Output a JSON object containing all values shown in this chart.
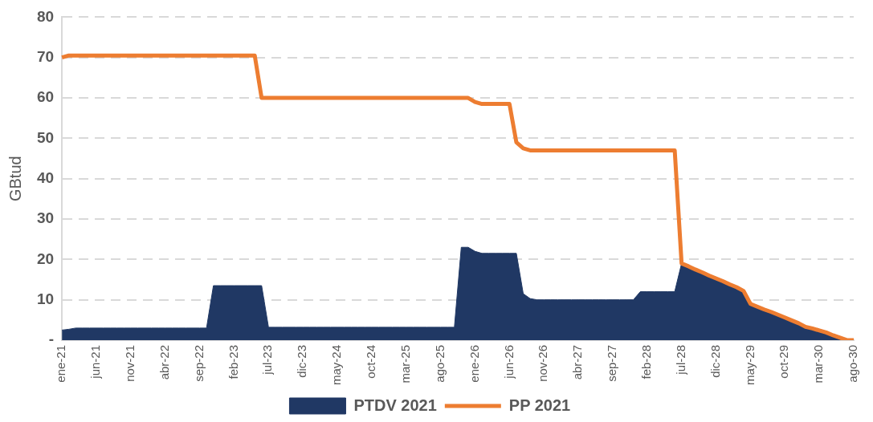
{
  "chart_data": {
    "type": "area",
    "ylabel": "GBtud",
    "categories": [
      "ene-21",
      null,
      null,
      null,
      null,
      "jun-21",
      null,
      null,
      null,
      null,
      "nov-21",
      null,
      null,
      null,
      null,
      "abr-22",
      null,
      null,
      null,
      null,
      "sep-22",
      null,
      null,
      null,
      null,
      "feb-23",
      null,
      null,
      null,
      null,
      "jul-23",
      null,
      null,
      null,
      null,
      "dic-23",
      null,
      null,
      null,
      null,
      "may-24",
      null,
      null,
      null,
      null,
      "oct-24",
      null,
      null,
      null,
      null,
      "mar-25",
      null,
      null,
      null,
      null,
      "ago-25",
      null,
      null,
      null,
      null,
      "ene-26",
      null,
      null,
      null,
      null,
      "jun-26",
      null,
      null,
      null,
      null,
      "nov-26",
      null,
      null,
      null,
      null,
      "abr-27",
      null,
      null,
      null,
      null,
      "sep-27",
      null,
      null,
      null,
      null,
      "feb-28",
      null,
      null,
      null,
      null,
      "jul-28",
      null,
      null,
      null,
      null,
      "dic-28",
      null,
      null,
      null,
      null,
      "may-29",
      null,
      null,
      null,
      null,
      "oct-29",
      null,
      null,
      null,
      null,
      "mar-30",
      null,
      null,
      null,
      null,
      "ago-30"
    ],
    "series": [
      {
        "name": "PTDV 2021",
        "color": "#203864",
        "values": [
          2.5,
          2.7,
          3,
          3,
          3,
          3,
          3,
          3,
          3,
          3,
          3,
          3,
          3,
          3,
          3,
          3,
          3,
          3,
          3,
          3,
          3,
          3,
          13.5,
          13.5,
          13.5,
          13.5,
          13.5,
          13.5,
          13.5,
          13.5,
          3.2,
          3.2,
          3.2,
          3.2,
          3.2,
          3.2,
          3.2,
          3.2,
          3.2,
          3.2,
          3.2,
          3.2,
          3.2,
          3.2,
          3.2,
          3.2,
          3.2,
          3.2,
          3.2,
          3.2,
          3.2,
          3.2,
          3.2,
          3.2,
          3.2,
          3.2,
          3.2,
          3.2,
          23,
          23,
          22,
          21.5,
          21.5,
          21.5,
          21.5,
          21.5,
          21.5,
          11.5,
          10.3,
          10,
          10,
          10,
          10,
          10,
          10,
          10,
          10,
          10,
          10,
          10,
          10,
          10,
          10,
          10,
          12,
          12,
          12,
          12,
          12,
          12,
          19,
          18.3,
          17.5,
          16.8,
          16,
          15.3,
          14.6,
          13.8,
          13.1,
          12.2,
          9,
          8.3,
          7.6,
          7,
          6.3,
          5.6,
          4.9,
          4.2,
          3.3,
          2.9,
          2.4,
          1.9,
          1.2,
          0.6,
          0,
          0
        ]
      },
      {
        "name": "PP 2021",
        "type": "line",
        "color": "#ed7d31",
        "values": [
          70,
          70.5,
          70.5,
          70.5,
          70.5,
          70.5,
          70.5,
          70.5,
          70.5,
          70.5,
          70.5,
          70.5,
          70.5,
          70.5,
          70.5,
          70.5,
          70.5,
          70.5,
          70.5,
          70.5,
          70.5,
          70.5,
          70.5,
          70.5,
          70.5,
          70.5,
          70.5,
          70.5,
          70.5,
          60,
          60,
          60,
          60,
          60,
          60,
          60,
          60,
          60,
          60,
          60,
          60,
          60,
          60,
          60,
          60,
          60,
          60,
          60,
          60,
          60,
          60,
          60,
          60,
          60,
          60,
          60,
          60,
          60,
          60,
          60,
          59,
          58.5,
          58.5,
          58.5,
          58.5,
          58.5,
          49,
          47.5,
          47,
          47,
          47,
          47,
          47,
          47,
          47,
          47,
          47,
          47,
          47,
          47,
          47,
          47,
          47,
          47,
          47,
          47,
          47,
          47,
          47,
          47,
          19,
          18.3,
          17.5,
          16.8,
          16,
          15.3,
          14.6,
          13.8,
          13.1,
          12.2,
          9,
          8.3,
          7.6,
          7,
          6.3,
          5.6,
          4.9,
          4.2,
          3.3,
          2.9,
          2.4,
          1.9,
          1.2,
          0.6,
          0,
          0
        ]
      }
    ],
    "ylim": [
      0,
      80
    ],
    "yticks": [
      {
        "value": 0,
        "label": "-"
      },
      10,
      20,
      30,
      40,
      50,
      60,
      70,
      80
    ],
    "grid": "y",
    "legend": "bottom",
    "marker": "none",
    "line_style": "solid"
  }
}
